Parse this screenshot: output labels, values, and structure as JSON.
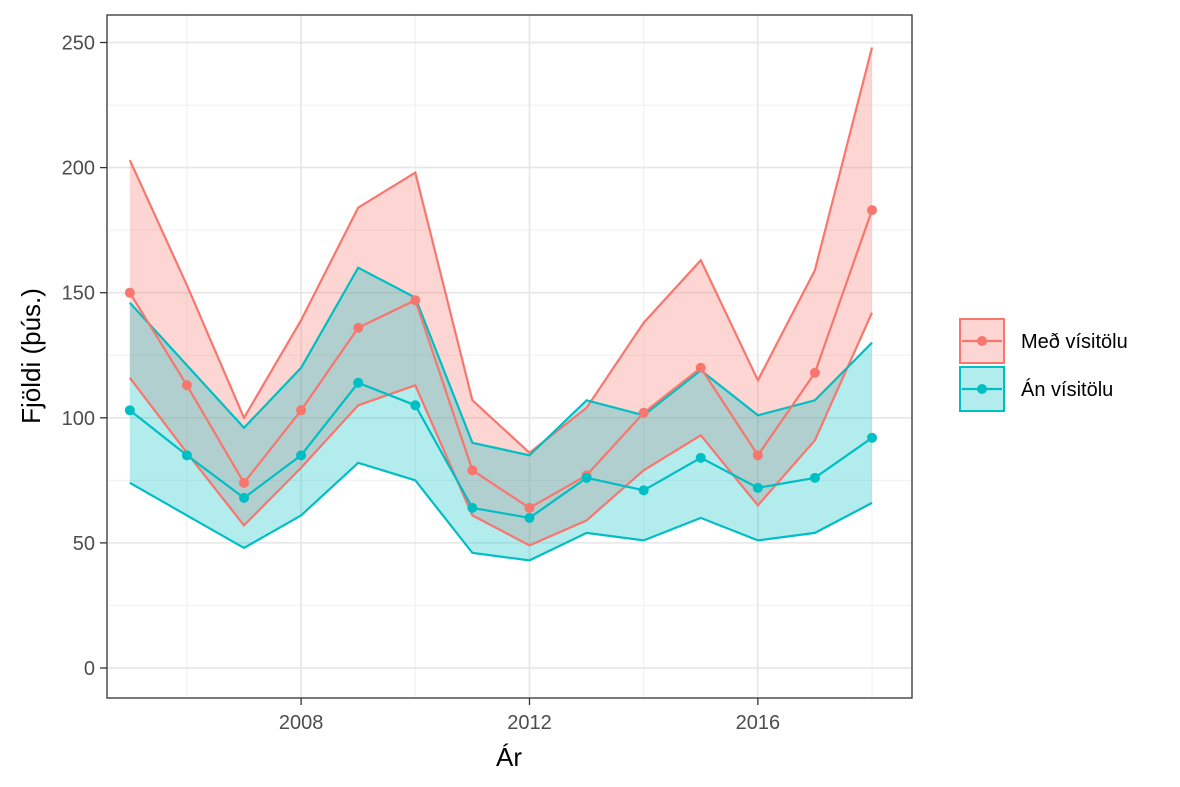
{
  "chart_data": {
    "type": "line",
    "title": "",
    "xlabel": "Ár",
    "ylabel": "Fjöldi (þús.)",
    "xlim": [
      2004.6,
      2018.7
    ],
    "ylim": [
      -12,
      261
    ],
    "x_ticks": [
      2008,
      2012,
      2016
    ],
    "x_ticks_minor": [
      2006,
      2010,
      2014,
      2018
    ],
    "y_ticks": [
      0,
      50,
      100,
      150,
      200,
      250
    ],
    "y_ticks_minor": [
      25,
      75,
      125,
      175,
      225
    ],
    "grid": true,
    "legend_position": "right",
    "x": [
      2005,
      2006,
      2007,
      2008,
      2009,
      2010,
      2011,
      2012,
      2013,
      2014,
      2015,
      2016,
      2017,
      2018
    ],
    "series": [
      {
        "name": "Með vísitölu",
        "color": "#F8766D",
        "values": [
          150,
          113,
          74,
          103,
          136,
          147,
          79,
          64,
          77,
          102,
          120,
          85,
          118,
          183
        ],
        "lower": [
          116,
          86,
          57,
          80,
          105,
          113,
          61,
          49,
          59,
          79,
          93,
          65,
          91,
          142
        ],
        "upper": [
          203,
          153,
          100,
          139,
          184,
          198,
          107,
          86,
          104,
          138,
          163,
          115,
          159,
          248
        ]
      },
      {
        "name": "Án vísitölu",
        "color": "#00BFC4",
        "values": [
          103,
          85,
          68,
          85,
          114,
          105,
          64,
          60,
          76,
          71,
          84,
          72,
          76,
          92
        ],
        "lower": [
          74,
          61,
          48,
          61,
          82,
          75,
          46,
          43,
          54,
          51,
          60,
          51,
          54,
          66
        ],
        "upper": [
          146,
          121,
          96,
          120,
          160,
          148,
          90,
          85,
          107,
          101,
          119,
          101,
          107,
          130
        ]
      }
    ]
  }
}
